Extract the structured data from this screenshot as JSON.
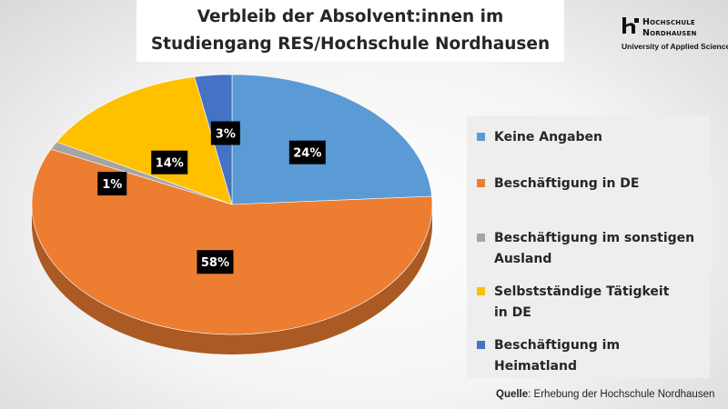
{
  "chart_data": {
    "type": "pie",
    "title_lines": [
      "Verbleib der Absolvent:innen im",
      "Studiengang RES/Hochschule Nordhausen"
    ],
    "slices": [
      {
        "label": "Keine Angaben",
        "value": 24,
        "data_label": "24%",
        "color": "#5b9bd5"
      },
      {
        "label": "Beschäftigung in DE",
        "value": 58,
        "data_label": "58%",
        "color": "#ed7d31"
      },
      {
        "label": "Beschäftigung im sonstigen Ausland",
        "value": 1,
        "data_label": "1%",
        "color": "#a5a5a5"
      },
      {
        "label": "Selbstständige Tätigkeit in DE",
        "value": 14,
        "data_label": "14%",
        "color": "#ffc000"
      },
      {
        "label": "Beschäftigung im Heimatland",
        "value": 3,
        "data_label": "3%",
        "color": "#4472c4"
      }
    ],
    "legend_position": "right"
  },
  "legend": {
    "items": [
      {
        "lines": [
          "Keine Angaben"
        ],
        "color": "#5b9bd5"
      },
      {
        "lines": [
          "Beschäftigung in DE"
        ],
        "color": "#ed7d31"
      },
      {
        "lines": [
          "Beschäftigung im sonstigen",
          "Ausland"
        ],
        "color": "#a5a5a5"
      },
      {
        "lines": [
          "Selbstständige Tätigkeit",
          "in DE"
        ],
        "color": "#ffc000"
      },
      {
        "lines": [
          "Beschäftigung im",
          "Heimatland"
        ],
        "color": "#4472c4"
      }
    ]
  },
  "logo": {
    "line1": "Hochschule",
    "line2": "Nordhausen",
    "line3": "University of Applied Sciences"
  },
  "source": {
    "label": "Quelle",
    "text": ": Erhebung der Hochschule Nordhausen"
  }
}
